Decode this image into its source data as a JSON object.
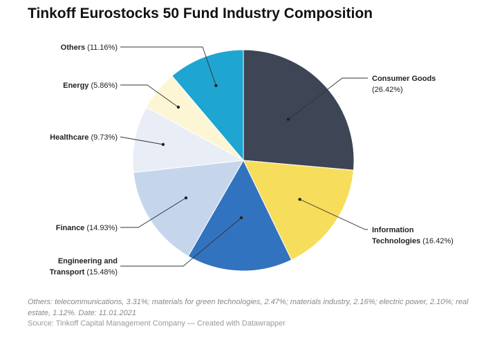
{
  "chart_data": {
    "type": "pie",
    "title": "Tinkoff Eurostocks 50 Fund Industry Composition",
    "slices": [
      {
        "label": "Consumer Goods",
        "display_label": [
          "Consumer Goods",
          ""
        ],
        "value": 26.42,
        "pct_text": "(26.42%)",
        "color": "#3e4555"
      },
      {
        "label": "Information Technologies",
        "display_label": [
          "Information",
          "Technologies"
        ],
        "value": 16.42,
        "pct_text": "(16.42%)",
        "color": "#f7dd5c"
      },
      {
        "label": "Engineering and Transport",
        "display_label": [
          "Engineering and",
          "Transport"
        ],
        "value": 15.48,
        "pct_text": "(15.48%)",
        "color": "#3273c0"
      },
      {
        "label": "Finance",
        "display_label": [
          "Finance",
          ""
        ],
        "value": 14.93,
        "pct_text": "(14.93%)",
        "color": "#c5d6ec"
      },
      {
        "label": "Healthcare",
        "display_label": [
          "Healthcare",
          ""
        ],
        "value": 9.73,
        "pct_text": "(9.73%)",
        "color": "#e9edf6"
      },
      {
        "label": "Energy",
        "display_label": [
          "Energy",
          ""
        ],
        "value": 5.86,
        "pct_text": "(5.86%)",
        "color": "#fdf6d5"
      },
      {
        "label": "Others",
        "display_label": [
          "Others",
          ""
        ],
        "value": 11.16,
        "pct_text": "(11.16%)",
        "color": "#1ea5d1"
      }
    ],
    "note": "Others: telecommunications, 3.31%; materials for green technologies, 2.47%; materials industry, 2.16%; electric power, 2.10%; real estate, 1.12%. Date: 11.01.2021",
    "source": "Source: Tinkoff Capital Management Company — Created with Datawrapper"
  }
}
